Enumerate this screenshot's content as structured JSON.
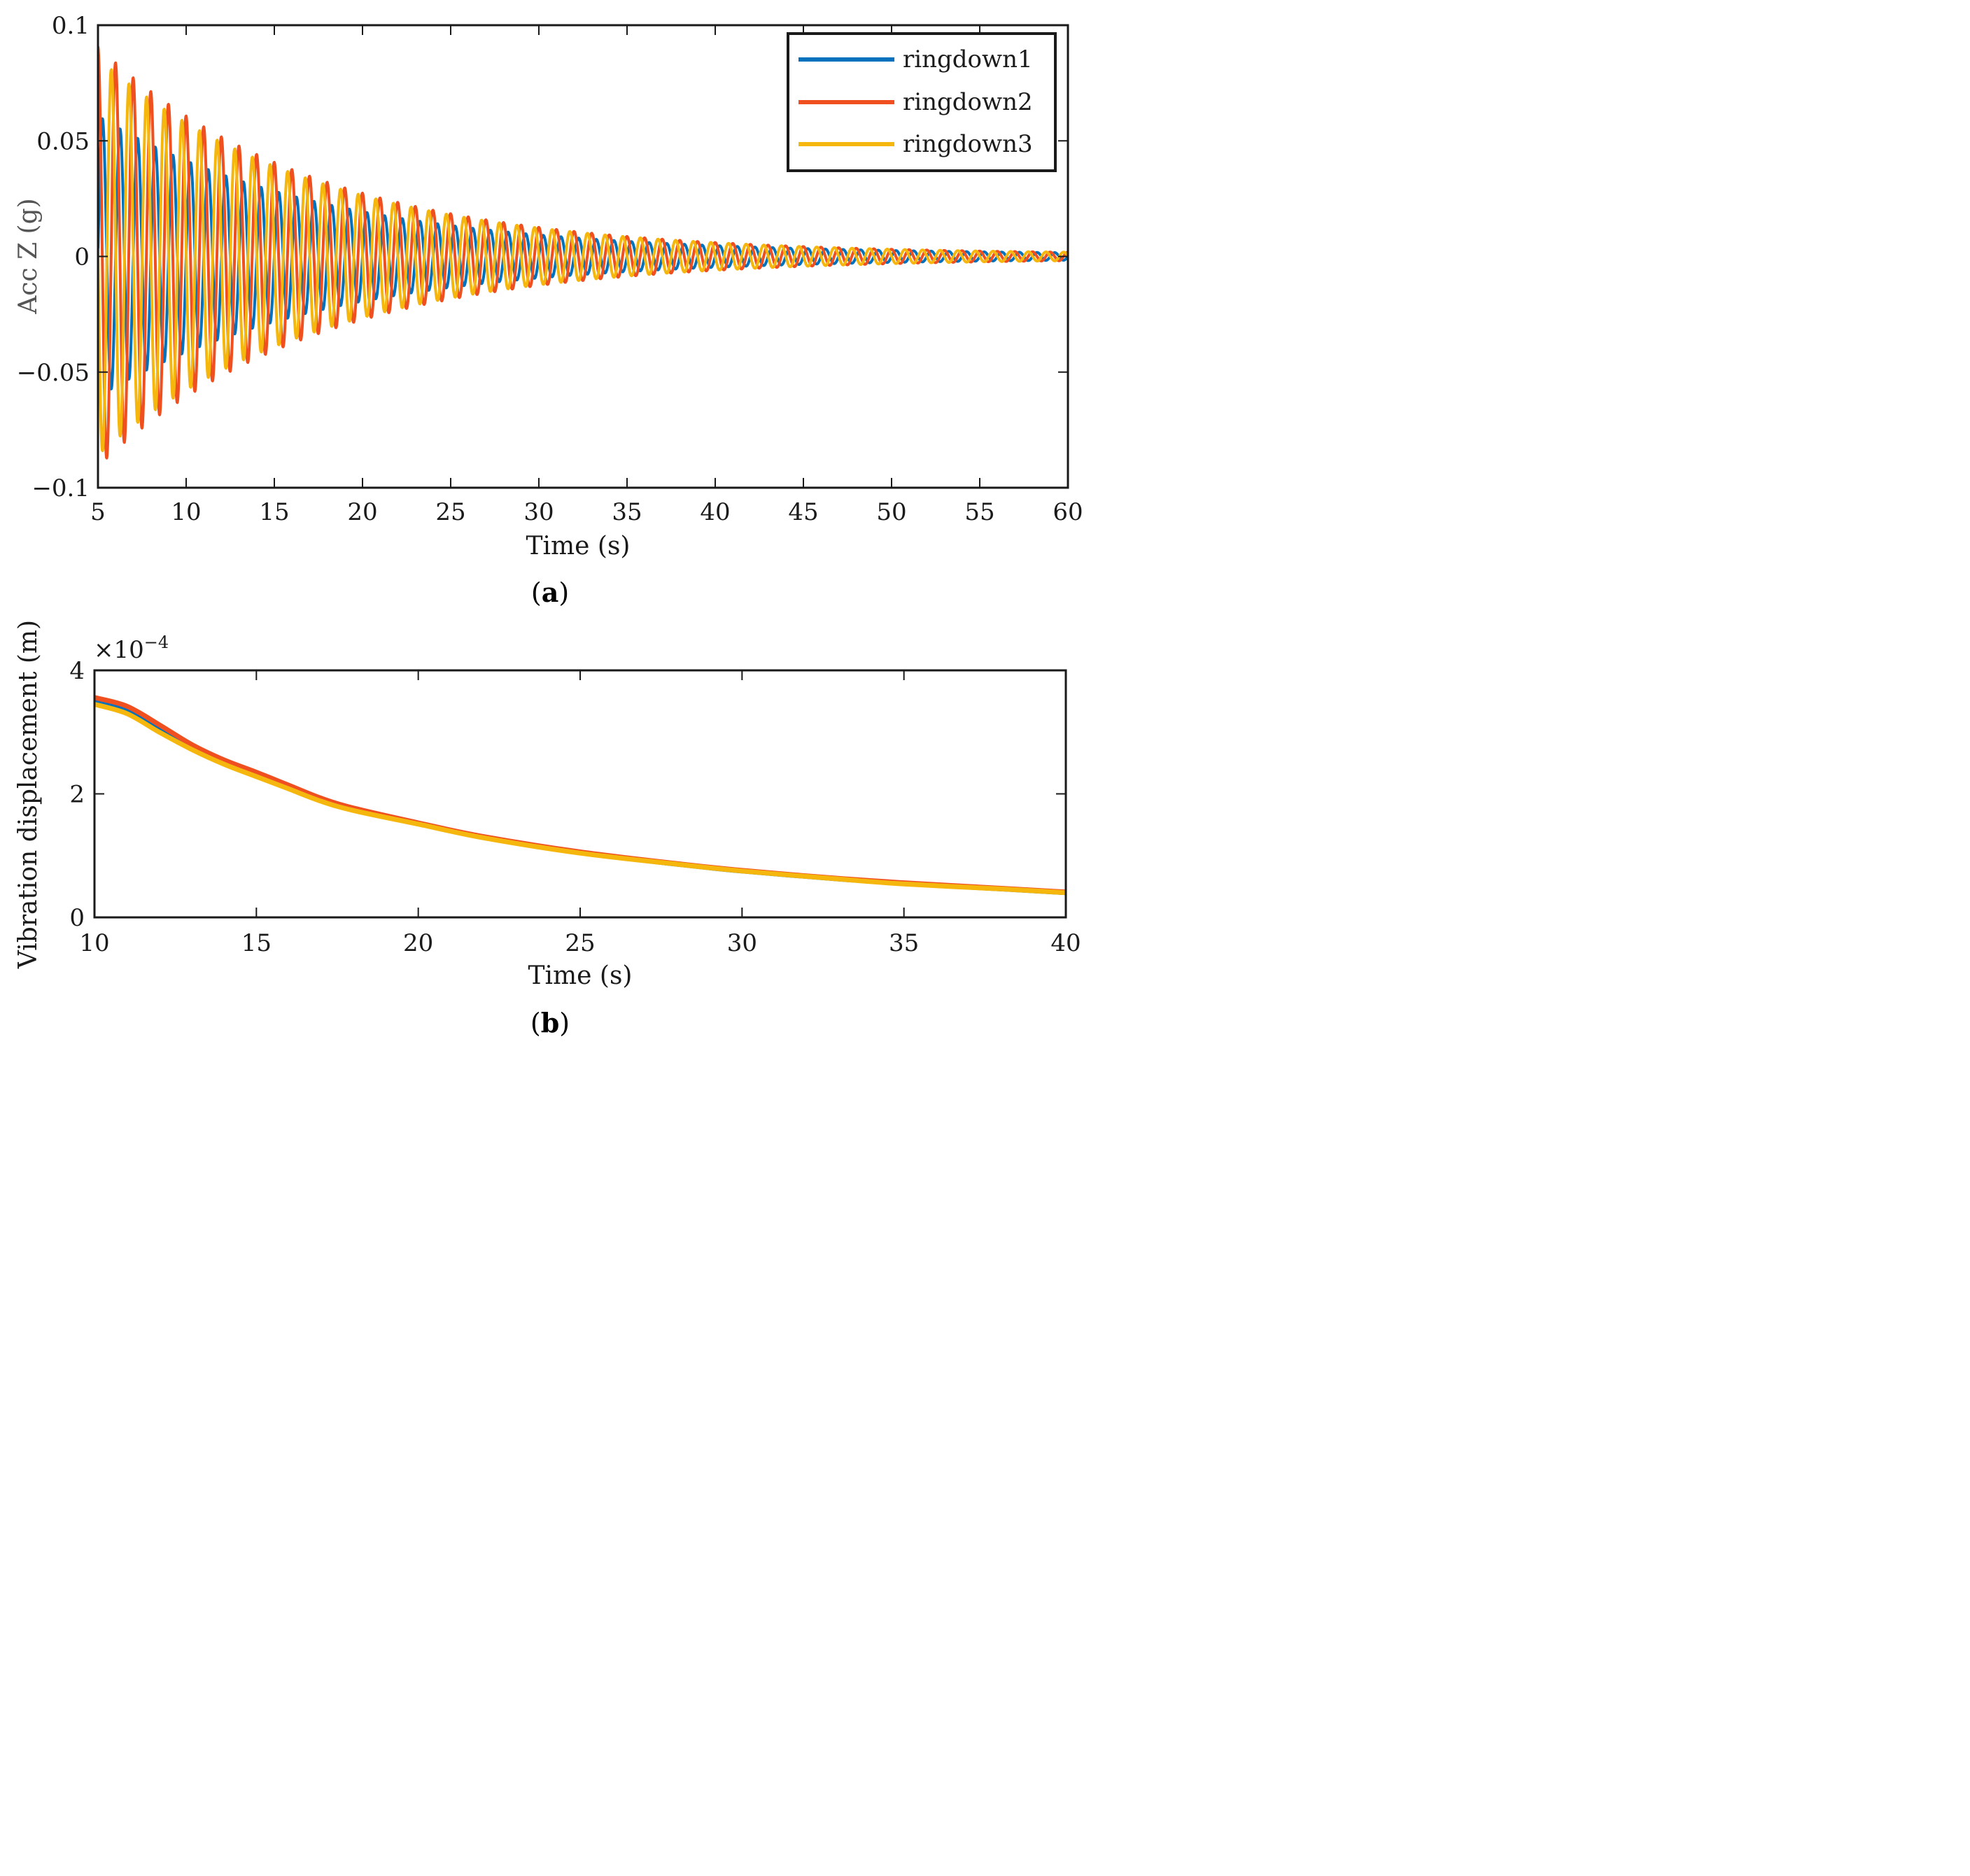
{
  "colors": {
    "ringdown1": "#0072BD",
    "ringdown2": "#F05020",
    "ringdown3": "#F5B70E",
    "axis": "#1a1a1a"
  },
  "chart_data": [
    {
      "id": "a",
      "type": "line",
      "caption_letter": "a",
      "xlabel": "Time (s)",
      "ylabel": "Acc Z (g)",
      "xlim": [
        5,
        60
      ],
      "ylim": [
        -0.1,
        0.1
      ],
      "xticks": [
        5,
        10,
        15,
        20,
        25,
        30,
        35,
        40,
        45,
        50,
        55,
        60
      ],
      "yticks": [
        0.1,
        0.05,
        0,
        -0.05,
        -0.1
      ],
      "ytick_labels": [
        "0.1",
        "0.05",
        "0",
        "−0.05",
        "−0.1"
      ],
      "legend_position": "top-right",
      "series": [
        {
          "name": "ringdown1",
          "color_key": "ringdown1",
          "amplitude_at_5s": 0.06,
          "decay_time_constant_s": 12.8,
          "frequency_hz": 1.0,
          "phase": 0.0
        },
        {
          "name": "ringdown2",
          "color_key": "ringdown2",
          "amplitude_at_5s": 0.09,
          "decay_time_constant_s": 12.3,
          "frequency_hz": 1.0,
          "phase": 1.6
        },
        {
          "name": "ringdown3",
          "color_key": "ringdown3",
          "amplitude_at_5s": 0.085,
          "decay_time_constant_s": 12.5,
          "frequency_hz": 1.0,
          "phase": 3.1
        }
      ]
    },
    {
      "id": "b",
      "type": "line",
      "caption_letter": "b",
      "xlabel": "Time (s)",
      "ylabel": "Vibration displacement (m)",
      "exponent_label": "×10",
      "exponent_power": "−4",
      "xlim": [
        10,
        40
      ],
      "ylim": [
        0,
        4
      ],
      "xticks": [
        10,
        15,
        20,
        25,
        30,
        35,
        40
      ],
      "yticks": [
        4,
        2,
        0
      ],
      "series": [
        {
          "name": "ringdown1",
          "color_key": "ringdown1",
          "x": [
            10,
            11,
            12,
            13,
            14,
            15,
            16,
            17,
            18,
            20,
            22,
            25,
            28,
            30,
            33,
            35,
            38,
            40
          ],
          "y": [
            3.5,
            3.35,
            3.05,
            2.75,
            2.5,
            2.3,
            2.1,
            1.9,
            1.75,
            1.52,
            1.3,
            1.05,
            0.86,
            0.75,
            0.62,
            0.55,
            0.46,
            0.4
          ]
        },
        {
          "name": "ringdown2",
          "color_key": "ringdown2",
          "x": [
            10,
            11,
            12,
            13,
            14,
            15,
            16,
            17,
            18,
            20,
            22,
            25,
            28,
            30,
            33,
            35,
            38,
            40
          ],
          "y": [
            3.56,
            3.42,
            3.12,
            2.8,
            2.55,
            2.35,
            2.14,
            1.93,
            1.77,
            1.53,
            1.31,
            1.06,
            0.87,
            0.76,
            0.63,
            0.56,
            0.47,
            0.41
          ]
        },
        {
          "name": "ringdown3",
          "color_key": "ringdown3",
          "x": [
            10,
            11,
            12,
            13,
            14,
            15,
            16,
            17,
            18,
            20,
            22,
            25,
            28,
            30,
            33,
            35,
            38,
            40
          ],
          "y": [
            3.45,
            3.3,
            3.0,
            2.72,
            2.48,
            2.28,
            2.08,
            1.88,
            1.73,
            1.51,
            1.29,
            1.04,
            0.86,
            0.75,
            0.62,
            0.54,
            0.46,
            0.4
          ]
        }
      ]
    }
  ]
}
